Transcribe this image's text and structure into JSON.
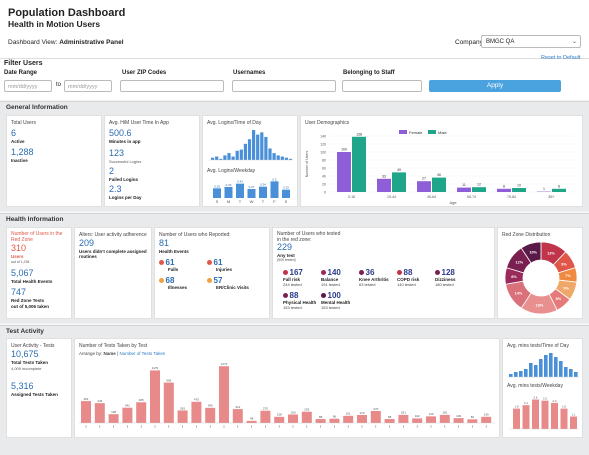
{
  "header": {
    "title": "Population Dashboard",
    "subtitle": "Health in Motion Users",
    "view_label": "Dashboard View:",
    "view_value": "Administrative Panel",
    "company_label": "Company:",
    "company_value": "BMGC QA"
  },
  "filter": {
    "title": "Filter Users",
    "reset": "Reset to Default",
    "date_label": "Date Range",
    "date_from": "mm/dd/yyyy",
    "to": "to",
    "date_to": "mm/dd/yyyy",
    "zip_label": "User ZIP Codes",
    "usernames_label": "Usernames",
    "staff_label": "Belonging to Staff",
    "apply": "Apply"
  },
  "general": {
    "title": "General Information",
    "total_users": {
      "title": "Total Users",
      "active": "6",
      "active_label": "Active",
      "inactive": "1,288",
      "inactive_label": "Inactive"
    },
    "time": {
      "title": "Avg. HiM User Time In App",
      "minutes": "500.6",
      "minutes_label": "Minutes in app",
      "logins": "123",
      "logins_label": "Successful Logins",
      "failed": "2",
      "failed_label": "Failed Logins",
      "per_day": "2.3",
      "per_day_label": "Logins per Day"
    },
    "logins_chart": {
      "title": "Avg. Logins/Time of Day",
      "week_title": "Avg. Logins/Weekday",
      "weekdays": [
        "S",
        "M",
        "T",
        "W",
        "T",
        "F",
        "S"
      ]
    },
    "demographics": {
      "title": "User Demographics",
      "ylabel": "Number of Users",
      "xlabel": "Age",
      "female": "Female",
      "male": "Male"
    }
  },
  "health": {
    "title": "Health Information",
    "redzone": {
      "title": "Number of Users in the Red Zone",
      "users": "310",
      "users_label": "Users",
      "sub": "out of 1,294",
      "events": "5,067",
      "events_label": "Total Health Events",
      "tests": "747",
      "tests_label": "Red Zone Tests",
      "tests_sub": "out of 5,006 taken"
    },
    "alerts": {
      "title": "Alters: User activity adherence",
      "value": "209",
      "label": "Users didn't complete assigned routines"
    },
    "reported": {
      "title": "Number of Users who Reported:",
      "value": "81",
      "label": "Health Events",
      "items": [
        {
          "n": "61",
          "l": "Falls",
          "c": "#e0574a"
        },
        {
          "n": "61",
          "l": "Injuries",
          "c": "#e0574a"
        },
        {
          "n": "68",
          "l": "Illnesses",
          "c": "#f0a040"
        },
        {
          "n": "57",
          "l": "ER/Clinic Visits",
          "c": "#f0a040"
        }
      ]
    },
    "tested": {
      "title": "Number of Users who tested in the red zone:",
      "value": "229",
      "label": "Any test",
      "sub": "(509 tested)",
      "items": [
        {
          "n": "167",
          "l": "Fall risk",
          "s": "244 tested",
          "c": "#c0354a"
        },
        {
          "n": "140",
          "l": "Balance",
          "s": "191 tested",
          "c": "#9a2a5a"
        },
        {
          "n": "36",
          "l": "Knee Arthritis",
          "s": "63 tested",
          "c": "#7a2050"
        },
        {
          "n": "88",
          "l": "COPD risk",
          "s": "140 tested",
          "c": "#c0354a"
        },
        {
          "n": "128",
          "l": "Dizziness",
          "s": "180 tested",
          "c": "#7a2050"
        },
        {
          "n": "88",
          "l": "Physical Health",
          "s": "153 tested",
          "c": "#7a2050"
        },
        {
          "n": "100",
          "l": "Mental Health",
          "s": "153 tested",
          "c": "#5a1a48"
        }
      ]
    },
    "distribution": {
      "title": "Red Zone Distribution",
      "slices": [
        {
          "v": 13,
          "c": "#c0354a"
        },
        {
          "v": 9,
          "c": "#e0574a"
        },
        {
          "v": 7,
          "c": "#f08a40"
        },
        {
          "v": 9,
          "c": "#f0a86a"
        },
        {
          "v": 8,
          "c": "#e67a7a"
        },
        {
          "v": 18,
          "c": "#e89090"
        },
        {
          "v": 14,
          "c": "#d9707a"
        },
        {
          "v": 8,
          "c": "#9a2a5a"
        },
        {
          "v": 12,
          "c": "#7a2050"
        },
        {
          "v": 10,
          "c": "#5a1a48"
        }
      ],
      "labels": [
        "13%",
        "9%",
        "7%",
        "9%",
        "8%",
        "18%",
        "14%",
        "8%",
        "12%",
        "10%"
      ]
    }
  },
  "tests": {
    "title": "Test Activity",
    "activity": {
      "title": "User Activity - Tests",
      "total": "10,675",
      "total_label": "Total Tests Taken",
      "incomplete": "4,009 incomplete",
      "assigned": "5,316",
      "assigned_label": "Assigned Tests Taken"
    },
    "by_test": {
      "title": "Number of Tests Taken by Test",
      "arrange": "Arrange by:",
      "by_name": "Name",
      "sep": "|",
      "by_count": "Number of Tests Taken"
    },
    "mins": {
      "title": "Avg. mins tests/Time of Day",
      "week_title": "Avg. mins tests/Weekday"
    }
  },
  "colors": {
    "accent": "#4aa3df",
    "female": "#8e5ed8",
    "male": "#1fa58a",
    "blue": "#4a90d9",
    "pink": "#e88a8a"
  },
  "chart_data": [
    {
      "type": "bar",
      "title": "Avg. Logins/Time of Day",
      "values": [
        2,
        3,
        1,
        4,
        6,
        3,
        8,
        9,
        14,
        18,
        26,
        22,
        24,
        20,
        10,
        6,
        4,
        3,
        2,
        1
      ]
    },
    {
      "type": "bar",
      "title": "Avg. Logins/Weekday",
      "categories": [
        "S",
        "M",
        "T",
        "W",
        "T",
        "F",
        "S"
      ],
      "values": [
        0.29,
        0.33,
        0.43,
        0.27,
        0.34,
        0.5,
        0.25
      ],
      "labels": [
        "0.29",
        "0.33",
        "0.43",
        "0.27",
        "0.34",
        "0.5",
        "0.25"
      ]
    },
    {
      "type": "bar",
      "title": "User Demographics",
      "categories": [
        "0-18",
        "19-44",
        "45-64",
        "65-74",
        "75-84",
        "85+"
      ],
      "series": [
        {
          "name": "Female",
          "values": [
            100,
            33,
            27,
            11,
            8,
            1
          ]
        },
        {
          "name": "Male",
          "values": [
            138,
            49,
            36,
            12,
            10,
            8
          ]
        }
      ],
      "ylim": [
        0,
        140
      ]
    },
    {
      "type": "bar",
      "title": "Number of Tests Taken by Test",
      "values": [
        491,
        445,
        198,
        342,
        465,
        1179,
        906,
        281,
        475,
        340,
        1273,
        312,
        48,
        275,
        138,
        190,
        253,
        88,
        96,
        161,
        179,
        270,
        88,
        181,
        102,
        149,
        181,
        109,
        82,
        139
      ]
    },
    {
      "type": "bar",
      "title": "Avg. mins tests/Time of Day",
      "values": [
        3,
        5,
        6,
        8,
        14,
        12,
        18,
        22,
        24,
        20,
        16,
        10,
        8,
        5
      ]
    },
    {
      "type": "bar",
      "title": "Avg. mins tests/Weekday",
      "values": [
        1.8,
        2.1,
        2.6,
        2.5,
        2.3,
        1.8,
        1.1
      ]
    }
  ]
}
